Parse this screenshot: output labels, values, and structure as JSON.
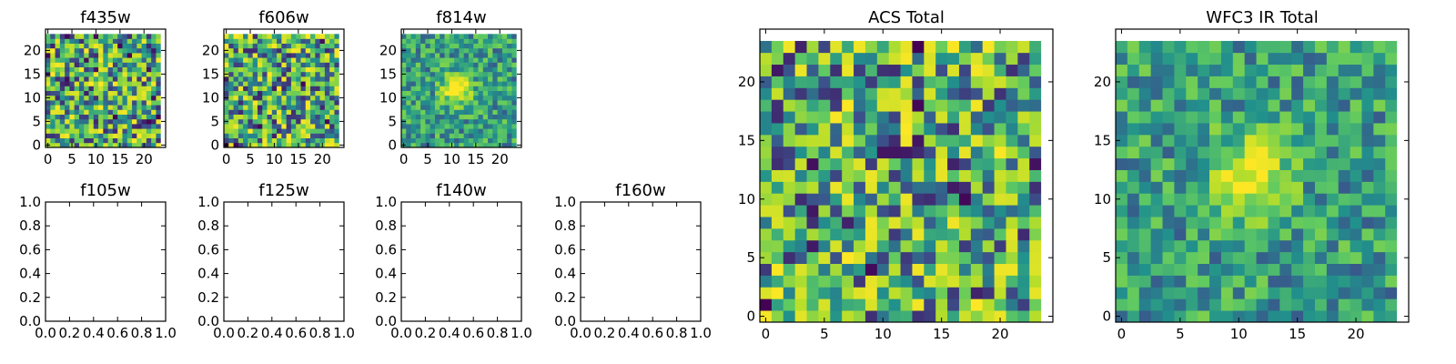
{
  "chart_data": [
    {
      "type": "heatmap",
      "title": "f435w",
      "xlim": [
        -0.5,
        24.5
      ],
      "ylim": [
        -0.5,
        24.5
      ],
      "xticks": [
        0,
        5,
        10,
        15,
        20
      ],
      "yticks": [
        0,
        5,
        10,
        15,
        20
      ],
      "xtick_labels": [
        "0",
        "5",
        "10",
        "15",
        "20"
      ],
      "ytick_labels": [
        "0",
        "5",
        "10",
        "15",
        "20"
      ],
      "grid": [
        24,
        24
      ],
      "center_blob": false
    },
    {
      "type": "heatmap",
      "title": "f606w",
      "xlim": [
        -0.5,
        24.5
      ],
      "ylim": [
        -0.5,
        24.5
      ],
      "xticks": [
        0,
        5,
        10,
        15,
        20
      ],
      "yticks": [
        0,
        5,
        10,
        15,
        20
      ],
      "xtick_labels": [
        "0",
        "5",
        "10",
        "15",
        "20"
      ],
      "ytick_labels": [
        "0",
        "5",
        "10",
        "15",
        "20"
      ],
      "grid": [
        24,
        24
      ],
      "center_blob": false
    },
    {
      "type": "heatmap",
      "title": "f814w",
      "xlim": [
        -0.5,
        24.5
      ],
      "ylim": [
        -0.5,
        24.5
      ],
      "xticks": [
        0,
        5,
        10,
        15,
        20
      ],
      "yticks": [
        0,
        5,
        10,
        15,
        20
      ],
      "xtick_labels": [
        "0",
        "5",
        "10",
        "15",
        "20"
      ],
      "ytick_labels": [
        "0",
        "5",
        "10",
        "15",
        "20"
      ],
      "grid": [
        24,
        24
      ],
      "center_blob": true
    },
    {
      "type": "empty",
      "title": "f105w",
      "xlim": [
        0,
        1
      ],
      "ylim": [
        0,
        1
      ],
      "xticks": [
        0,
        0.2,
        0.4,
        0.6,
        0.8,
        1.0
      ],
      "yticks": [
        0,
        0.2,
        0.4,
        0.6,
        0.8,
        1.0
      ],
      "xtick_labels": [
        "0.0",
        "0.2",
        "0.4",
        "0.6",
        "0.8",
        "1.0"
      ],
      "ytick_labels": [
        "0.0",
        "0.2",
        "0.4",
        "0.6",
        "0.8",
        "1.0"
      ]
    },
    {
      "type": "empty",
      "title": "f125w",
      "xlim": [
        0,
        1
      ],
      "ylim": [
        0,
        1
      ],
      "xticks": [
        0,
        0.2,
        0.4,
        0.6,
        0.8,
        1.0
      ],
      "yticks": [
        0,
        0.2,
        0.4,
        0.6,
        0.8,
        1.0
      ],
      "xtick_labels": [
        "0.0",
        "0.2",
        "0.4",
        "0.6",
        "0.8",
        "1.0"
      ],
      "ytick_labels": [
        "0.0",
        "0.2",
        "0.4",
        "0.6",
        "0.8",
        "1.0"
      ]
    },
    {
      "type": "empty",
      "title": "f140w",
      "xlim": [
        0,
        1
      ],
      "ylim": [
        0,
        1
      ],
      "xticks": [
        0,
        0.2,
        0.4,
        0.6,
        0.8,
        1.0
      ],
      "yticks": [
        0,
        0.2,
        0.4,
        0.6,
        0.8,
        1.0
      ],
      "xtick_labels": [
        "0.0",
        "0.2",
        "0.4",
        "0.6",
        "0.8",
        "1.0"
      ],
      "ytick_labels": [
        "0.0",
        "0.2",
        "0.4",
        "0.6",
        "0.8",
        "1.0"
      ]
    },
    {
      "type": "empty",
      "title": "f160w",
      "xlim": [
        0,
        1
      ],
      "ylim": [
        0,
        1
      ],
      "xticks": [
        0,
        0.2,
        0.4,
        0.6,
        0.8,
        1.0
      ],
      "yticks": [
        0,
        0.2,
        0.4,
        0.6,
        0.8,
        1.0
      ],
      "xtick_labels": [
        "0.0",
        "0.2",
        "0.4",
        "0.6",
        "0.8",
        "1.0"
      ],
      "ytick_labels": [
        "0.0",
        "0.2",
        "0.4",
        "0.6",
        "0.8",
        "1.0"
      ]
    },
    {
      "type": "heatmap",
      "title": "ACS Total",
      "xlim": [
        -0.5,
        24.5
      ],
      "ylim": [
        -0.5,
        24.5
      ],
      "xticks": [
        0,
        5,
        10,
        15,
        20
      ],
      "yticks": [
        0,
        5,
        10,
        15,
        20
      ],
      "xtick_labels": [
        "0",
        "5",
        "10",
        "15",
        "20"
      ],
      "ytick_labels": [
        "0",
        "5",
        "10",
        "15",
        "20"
      ],
      "grid": [
        24,
        24
      ],
      "center_blob": false
    },
    {
      "type": "heatmap",
      "title": "WFC3 IR Total",
      "xlim": [
        -0.5,
        24.5
      ],
      "ylim": [
        -0.5,
        24.5
      ],
      "xticks": [
        0,
        5,
        10,
        15,
        20
      ],
      "yticks": [
        0,
        5,
        10,
        15,
        20
      ],
      "xtick_labels": [
        "0",
        "5",
        "10",
        "15",
        "20"
      ],
      "ytick_labels": [
        "0",
        "5",
        "10",
        "15",
        "20"
      ],
      "grid": [
        24,
        24
      ],
      "center_blob": true
    }
  ],
  "colormap": [
    "#440154",
    "#3b528b",
    "#21918c",
    "#5ec962",
    "#b5de2b",
    "#fde725"
  ]
}
